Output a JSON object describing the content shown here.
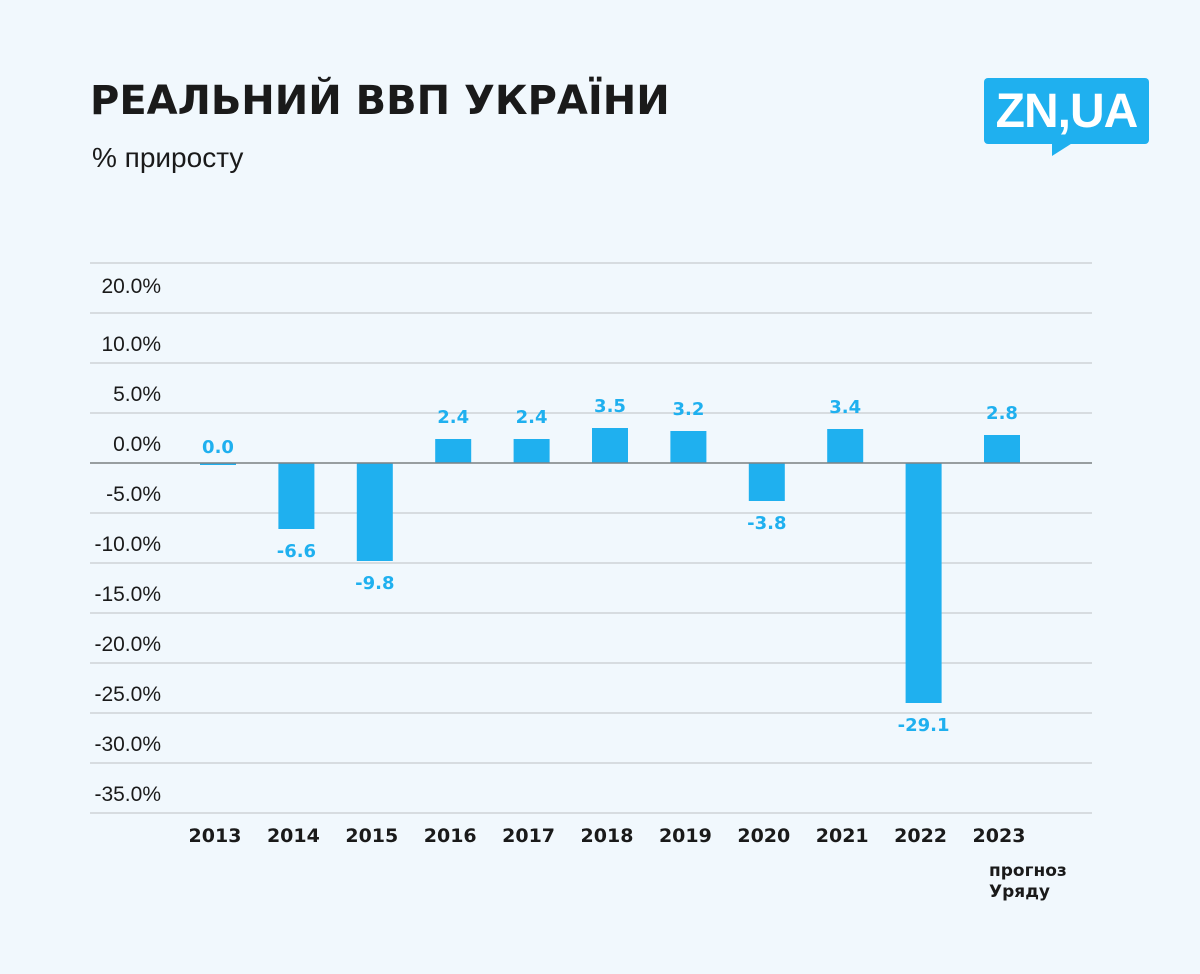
{
  "header": {
    "title": "РЕАЛЬНИЙ ВВП УКРАЇНИ",
    "subtitle": "% приросту",
    "logo": "ZN,UA"
  },
  "colors": {
    "bar": "#1fb0ef",
    "grid": "#c8ccd0",
    "zero_line": "#7f8386",
    "text": "#1a1a1a"
  },
  "chart_data": {
    "type": "bar",
    "categories": [
      "2013",
      "2014",
      "2015",
      "2016",
      "2017",
      "2018",
      "2019",
      "2020",
      "2021",
      "2022",
      "2023"
    ],
    "values": [
      0.0,
      -6.6,
      -9.8,
      2.4,
      2.4,
      3.5,
      3.2,
      -3.8,
      3.4,
      -29.1,
      2.8
    ],
    "value_labels": [
      "0.0",
      "-6.6",
      "-9.8",
      "2.4",
      "2.4",
      "3.5",
      "3.2",
      "-3.8",
      "3.4",
      "-29.1",
      "2.8"
    ],
    "y_tick_labels": [
      "20.0%",
      "10.0%",
      "5.0%",
      "0.0%",
      "-5.0%",
      "-10.0%",
      "-15.0%",
      "-20.0%",
      "-25.0%",
      "-30.0%",
      "-35.0%"
    ],
    "annotation_2023": [
      "прогноз",
      "Уряду"
    ],
    "grid": true,
    "legend": "none"
  }
}
